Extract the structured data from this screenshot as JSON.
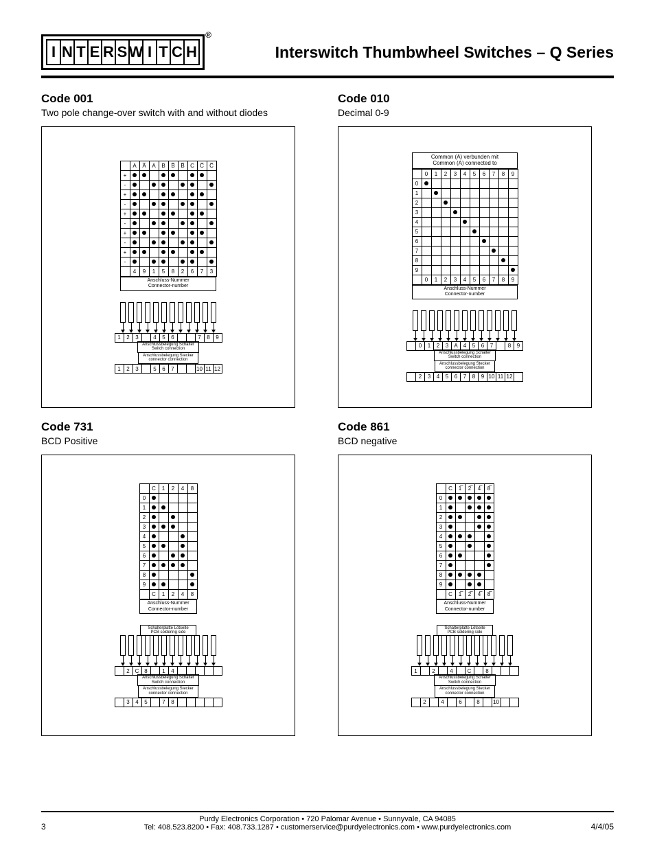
{
  "logo_letters": [
    "I",
    "N",
    "T",
    "E",
    "R",
    "S",
    "W",
    "I",
    "T",
    "C",
    "H"
  ],
  "reg_mark": "®",
  "page_title": "Interswitch Thumbwheel Switches – Q Series",
  "sections": {
    "s001": {
      "title": "Code 001",
      "sub": "Two pole change-over switch with and without diodes",
      "cols": [
        "A",
        "A̅",
        "A",
        "B",
        "B̅",
        "B̅",
        "C",
        "C̅",
        "C̅"
      ],
      "footer_nums": [
        "4",
        "9",
        "1",
        "5",
        "8",
        "2",
        "6",
        "7",
        "3"
      ],
      "caption1": "Anschluss-Nummer",
      "caption2": "Connector-number",
      "dots": {
        "r0": [
          1,
          1,
          0,
          1,
          1,
          0,
          1,
          1,
          0
        ],
        "r1": [
          1,
          0,
          1,
          1,
          0,
          1,
          1,
          0,
          1
        ],
        "r2": [
          1,
          1,
          0,
          1,
          1,
          0,
          1,
          1,
          0
        ],
        "r3": [
          1,
          0,
          1,
          1,
          0,
          1,
          1,
          0,
          1
        ],
        "r4": [
          1,
          1,
          0,
          1,
          1,
          0,
          1,
          1,
          0
        ],
        "r5": [
          1,
          0,
          1,
          1,
          0,
          1,
          1,
          0,
          1
        ],
        "r6": [
          1,
          1,
          0,
          1,
          1,
          0,
          1,
          1,
          0
        ],
        "r7": [
          1,
          0,
          1,
          1,
          0,
          1,
          1,
          0,
          1
        ],
        "r8": [
          1,
          1,
          0,
          1,
          1,
          0,
          1,
          1,
          0
        ],
        "r9": [
          1,
          0,
          1,
          1,
          0,
          1,
          1,
          0,
          1
        ]
      },
      "row_labels": [
        "+",
        "-",
        "+",
        "-",
        "+",
        "-",
        "+",
        "-",
        "+",
        "-"
      ],
      "conn_top": [
        "1",
        "2",
        "3",
        "",
        "4",
        "5",
        "6",
        "",
        "",
        "7",
        "8",
        "9"
      ],
      "conn_bot": [
        "1",
        "2",
        "3",
        "",
        "5",
        "6",
        "7",
        "",
        "",
        "10",
        "11",
        "12"
      ],
      "band1a": "Anschlussbelegung Schalter",
      "band1b": "Switch connection",
      "band2a": "Anschlussbelegung Stecker",
      "band2b": "connector connection"
    },
    "s010": {
      "title": "Code 010",
      "sub": "Decimal 0-9",
      "common_hdr1": "Common (A) verbunden mit",
      "common_hdr2": "Common (A) connected to",
      "cols": [
        "0",
        "1",
        "2",
        "3",
        "4",
        "5",
        "6",
        "7",
        "8",
        "9"
      ],
      "footer_nums": [
        "0",
        "1",
        "2",
        "3",
        "4",
        "5",
        "6",
        "7",
        "8",
        "9"
      ],
      "caption1": "Anschluss-Nummer",
      "caption2": "Connector-number",
      "row_labels": [
        "0",
        "1",
        "2",
        "3",
        "4",
        "5",
        "6",
        "7",
        "8",
        "9"
      ],
      "conn_top": [
        "",
        "0",
        "1",
        "2",
        "3",
        "A",
        "4",
        "5",
        "6",
        "7",
        "",
        "8",
        "9"
      ],
      "conn_bot": [
        "",
        "2",
        "3",
        "4",
        "5",
        "6",
        "7",
        "8",
        "9",
        "10",
        "11",
        "12",
        ""
      ],
      "band1a": "Anschlussbelegung Schalter",
      "band1b": "Switch connection",
      "band2a": "Anschlussbelegung Stecker",
      "band2b": "connector connection"
    },
    "s731": {
      "title": "Code 731",
      "sub": "BCD Positive",
      "cols": [
        "C",
        "1",
        "2",
        "4",
        "8"
      ],
      "footer_nums": [
        "C",
        "1",
        "2",
        "4",
        "8"
      ],
      "caption1": "Anschluss-Nummer",
      "caption2": "Connector-number",
      "dots": {
        "r0": [
          1,
          0,
          0,
          0,
          0
        ],
        "r1": [
          1,
          1,
          0,
          0,
          0
        ],
        "r2": [
          1,
          0,
          1,
          0,
          0
        ],
        "r3": [
          1,
          1,
          1,
          0,
          0
        ],
        "r4": [
          1,
          0,
          0,
          1,
          0
        ],
        "r5": [
          1,
          1,
          0,
          1,
          0
        ],
        "r6": [
          1,
          0,
          1,
          1,
          0
        ],
        "r7": [
          1,
          1,
          1,
          1,
          0
        ],
        "r8": [
          1,
          0,
          0,
          0,
          1
        ],
        "r9": [
          1,
          1,
          0,
          0,
          1
        ]
      },
      "row_labels": [
        "0",
        "1",
        "2",
        "3",
        "4",
        "5",
        "6",
        "7",
        "8",
        "9"
      ],
      "pcb1": "Schalterplatte Lötseite",
      "pcb2": "PCB soldering side",
      "conn_top": [
        "",
        "2",
        "C",
        "8",
        "",
        "1",
        "4",
        "",
        "",
        "",
        "",
        ""
      ],
      "conn_bot": [
        "",
        "3",
        "4",
        "5",
        "",
        "7",
        "8",
        "",
        "",
        "",
        "",
        ""
      ],
      "band1a": "Anschlussbelegung Schalter",
      "band1b": "Switch connection",
      "band2a": "Anschlussbelegung Stecker",
      "band2b": "connector connection"
    },
    "s861": {
      "title": "Code 861",
      "sub": "BCD negative",
      "cols": [
        "C",
        "1̅",
        "2̅",
        "4̅",
        "8̅"
      ],
      "footer_nums": [
        "C",
        "1̅",
        "2̅",
        "4̅",
        "8̅"
      ],
      "caption1": "Anschluss-Nummer",
      "caption2": "Connector-number",
      "dots": {
        "r0": [
          1,
          1,
          1,
          1,
          1
        ],
        "r1": [
          1,
          0,
          1,
          1,
          1
        ],
        "r2": [
          1,
          1,
          0,
          1,
          1
        ],
        "r3": [
          1,
          0,
          0,
          1,
          1
        ],
        "r4": [
          1,
          1,
          1,
          0,
          1
        ],
        "r5": [
          1,
          0,
          1,
          0,
          1
        ],
        "r6": [
          1,
          1,
          0,
          0,
          1
        ],
        "r7": [
          1,
          0,
          0,
          0,
          1
        ],
        "r8": [
          1,
          1,
          1,
          1,
          0
        ],
        "r9": [
          1,
          0,
          1,
          1,
          0
        ]
      },
      "row_labels": [
        "0",
        "1",
        "2",
        "3",
        "4",
        "5",
        "6",
        "7",
        "8",
        "9"
      ],
      "pcb1": "Schalterplatte Lötseite",
      "pcb2": "PCB soldering side",
      "conn_top": [
        "1",
        "",
        "2",
        "",
        "4",
        "",
        "C",
        "",
        "8",
        "",
        "",
        ""
      ],
      "conn_bot": [
        "",
        "2",
        "",
        "4",
        "",
        "6",
        "",
        "8",
        "",
        "10",
        "",
        ""
      ],
      "band1a": "Anschlussbelegung Schalter",
      "band1b": "Switch connection",
      "band2a": "Anschlussbelegung Stecker",
      "band2b": "connector connection"
    }
  },
  "footer": {
    "line1": "Purdy Electronics Corporation  •  720 Palomar Avenue  •  Sunnyvale, CA 94085",
    "line2": "Tel: 408.523.8200 • Fax: 408.733.1287  •  customerservice@purdyelectronics.com • www.purdyelectronics.com",
    "page": "3",
    "date": "4/4/05"
  }
}
